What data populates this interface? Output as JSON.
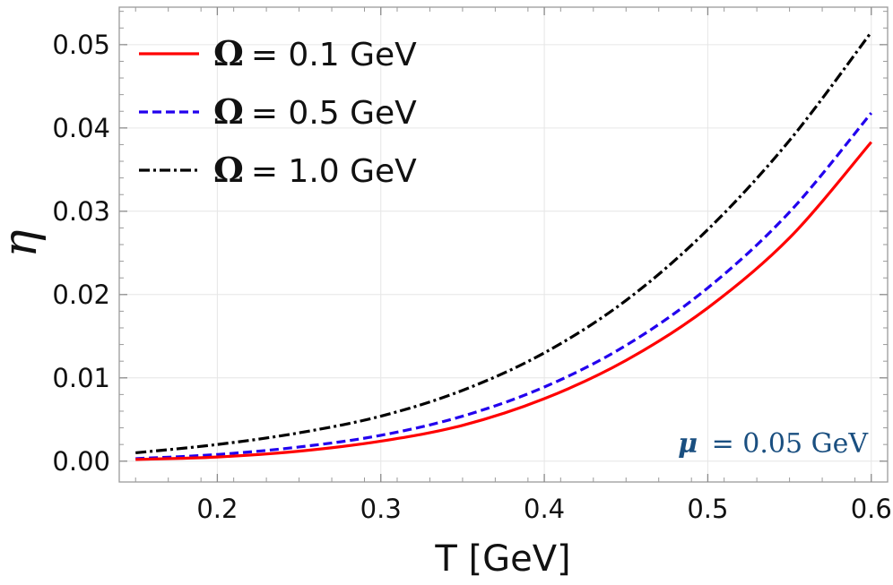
{
  "chart_data": {
    "type": "line",
    "title": "",
    "xlabel": "T [GeV]",
    "ylabel": "η",
    "xlim": [
      0.14,
      0.61
    ],
    "ylim": [
      -0.0025,
      0.0545
    ],
    "xticks": [
      0.2,
      0.3,
      0.4,
      0.5,
      0.6
    ],
    "xtick_labels": [
      "0.2",
      "0.3",
      "0.4",
      "0.5",
      "0.6"
    ],
    "yticks": [
      0.0,
      0.01,
      0.02,
      0.03,
      0.04,
      0.05
    ],
    "ytick_labels": [
      "0.00",
      "0.01",
      "0.02",
      "0.03",
      "0.04",
      "0.05"
    ],
    "grid": true,
    "legend_position": "top-left",
    "x": [
      0.15,
      0.2,
      0.25,
      0.3,
      0.35,
      0.4,
      0.45,
      0.5,
      0.55,
      0.6
    ],
    "series": [
      {
        "name": "Ω = 0.1 GeV",
        "symbol": "Ω",
        "value_text": "= 0.1 GeV",
        "color": "#ff0000",
        "dash": "solid",
        "values": [
          0.0002,
          0.0005,
          0.0012,
          0.0024,
          0.0043,
          0.0075,
          0.0121,
          0.0184,
          0.0268,
          0.0383
        ]
      },
      {
        "name": "Ω = 0.5 GeV",
        "symbol": "Ω",
        "value_text": "= 0.5 GeV",
        "color": "#2200ee",
        "dash": "dashed",
        "values": [
          0.0003,
          0.0008,
          0.0017,
          0.0031,
          0.0054,
          0.0089,
          0.0139,
          0.0208,
          0.0299,
          0.0418
        ]
      },
      {
        "name": "Ω = 1.0 GeV",
        "symbol": "Ω",
        "value_text": "= 1.0 GeV",
        "color": "#000000",
        "dash": "dashdot",
        "values": [
          0.001,
          0.002,
          0.0034,
          0.0054,
          0.0085,
          0.013,
          0.0193,
          0.0278,
          0.0385,
          0.0515
        ]
      }
    ],
    "annotations": [
      {
        "symbol": "μ",
        "text": "= 0.05 GeV",
        "color": "#1a4f80",
        "position": "bottom-right"
      }
    ]
  }
}
